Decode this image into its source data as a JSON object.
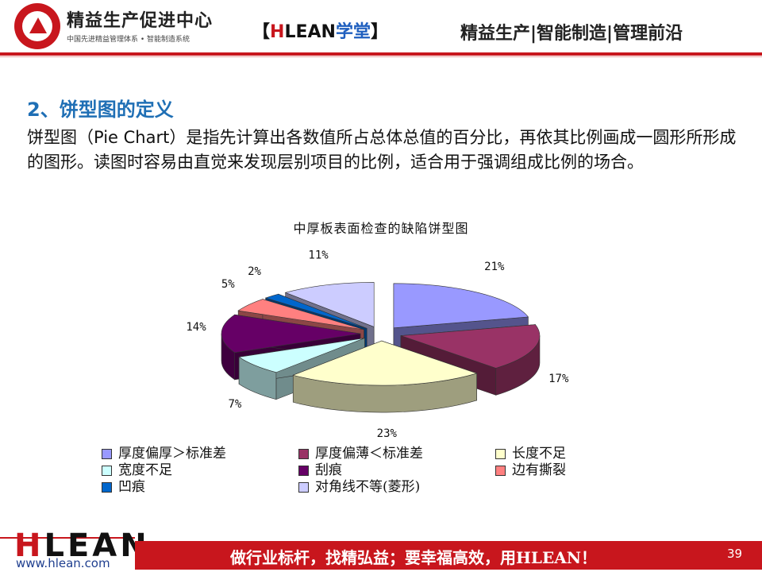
{
  "header": {
    "org_name": "精益生产促进中心",
    "org_sub": "中国先进精益管理体系 • 智能制造系统",
    "tag_left": "【",
    "tag_brand_h": "H",
    "tag_brand_rest": "LEAN",
    "tag_school": "学堂",
    "tag_right": "】",
    "right_title": "精益生产|智能制造|管理前沿"
  },
  "slide": {
    "section_title": "2、饼型图的定义",
    "body": "饼型图（Pie Chart）是指先计算出各数值所占总体总值的百分比，再依其比例画成一圆形所形成的图形。读图时容易由直觉来发现层别项目的比例，适合用于强调组成比例的场合。"
  },
  "chart_data": {
    "type": "pie",
    "title": "中厚板表面检查的缺陷饼型图",
    "categories": [
      "厚度偏厚＞标准差",
      "厚度偏薄＜标准差",
      "长度不足",
      "宽度不足",
      "刮痕",
      "边有撕裂",
      "凹痕",
      "对角线不等(菱形)"
    ],
    "values": [
      21,
      17,
      23,
      7,
      14,
      5,
      2,
      11
    ],
    "labels": [
      "21%",
      "17%",
      "23%",
      "7%",
      "14%",
      "5%",
      "2%",
      "11%"
    ],
    "colors": [
      "#9999ff",
      "#993366",
      "#ffffcc",
      "#ccffff",
      "#660066",
      "#ff8080",
      "#0066cc",
      "#ccccff"
    ],
    "legend_position": "bottom",
    "exploded": true,
    "three_d": true
  },
  "footer": {
    "logo_h": "H",
    "logo_rest": "LEAN",
    "url": "www.hlean.com",
    "slogan": "做行业标杆，找精弘益；要幸福高效，用HLEAN！",
    "page_number": "39"
  }
}
